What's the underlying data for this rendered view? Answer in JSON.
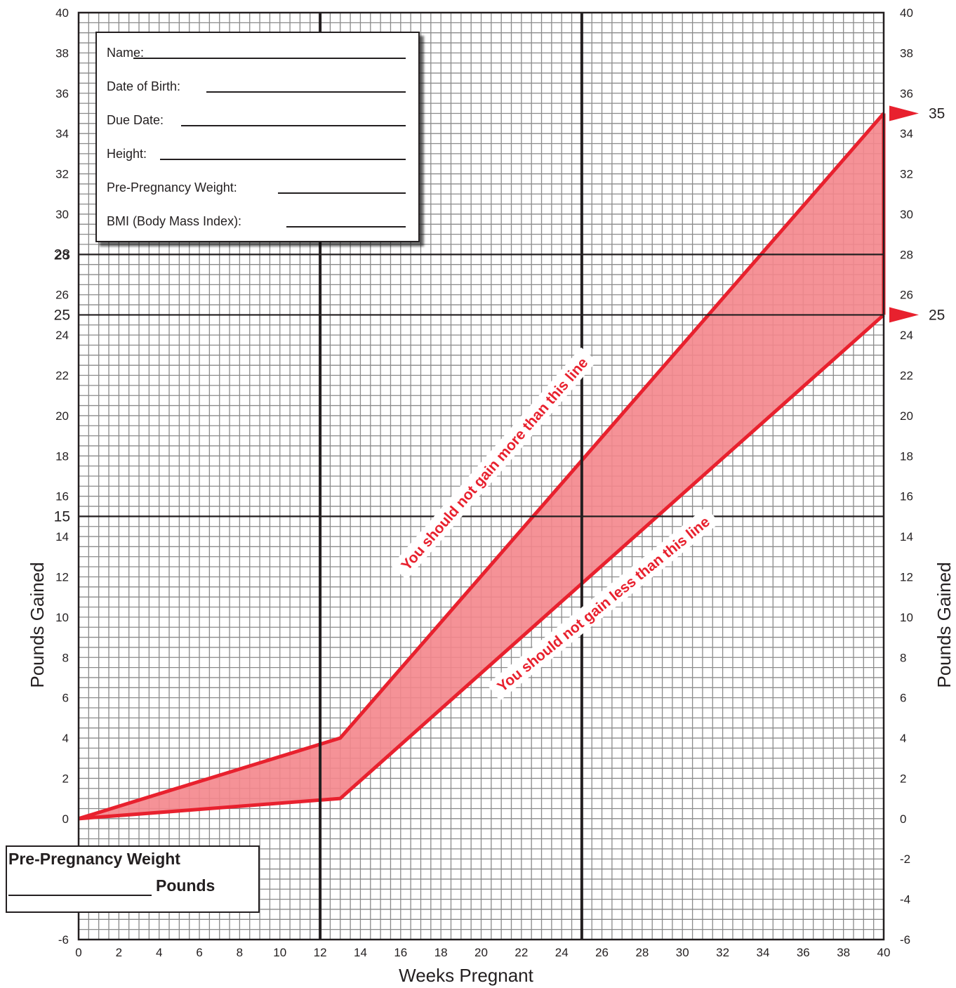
{
  "chart_data": {
    "type": "area",
    "xlabel": "Weeks Pregnant",
    "ylabel": "Pounds Gained",
    "xlim": [
      0,
      40
    ],
    "ylim": [
      -6,
      40
    ],
    "x_ticks": [
      0,
      2,
      4,
      6,
      8,
      10,
      12,
      14,
      16,
      18,
      20,
      22,
      24,
      26,
      28,
      30,
      32,
      34,
      36,
      38,
      40
    ],
    "y_ticks": [
      -6,
      -4,
      -2,
      0,
      2,
      4,
      6,
      8,
      10,
      12,
      14,
      16,
      18,
      20,
      22,
      24,
      26,
      28,
      30,
      32,
      34,
      36,
      38,
      40
    ],
    "y_ticks_emphasized": [
      15,
      25,
      28
    ],
    "emphasized_week_lines": [
      12,
      25
    ],
    "grid": true,
    "series": [
      {
        "name": "You should not gain more than this line",
        "x": [
          0,
          13,
          40
        ],
        "y": [
          0,
          4,
          35
        ]
      },
      {
        "name": "You should not gain less than this line",
        "x": [
          0,
          13,
          40
        ],
        "y": [
          0,
          1,
          25
        ]
      }
    ],
    "end_markers": [
      {
        "label": "35",
        "value": 35
      },
      {
        "label": "25",
        "value": 25
      }
    ],
    "colors": {
      "band_line": "#e8212e",
      "band_fill": "#f4868c",
      "grid": "#8a8a8a",
      "major": "#231f20"
    }
  },
  "info_form": {
    "fields": [
      "Name:",
      "Date of Birth:",
      "Due Date:",
      "Height:",
      "Pre-Pregnancy Weight:",
      "BMI (Body Mass Index):"
    ]
  },
  "weight_box": {
    "title": "Pre-Pregnancy Weight",
    "unit": "Pounds"
  }
}
